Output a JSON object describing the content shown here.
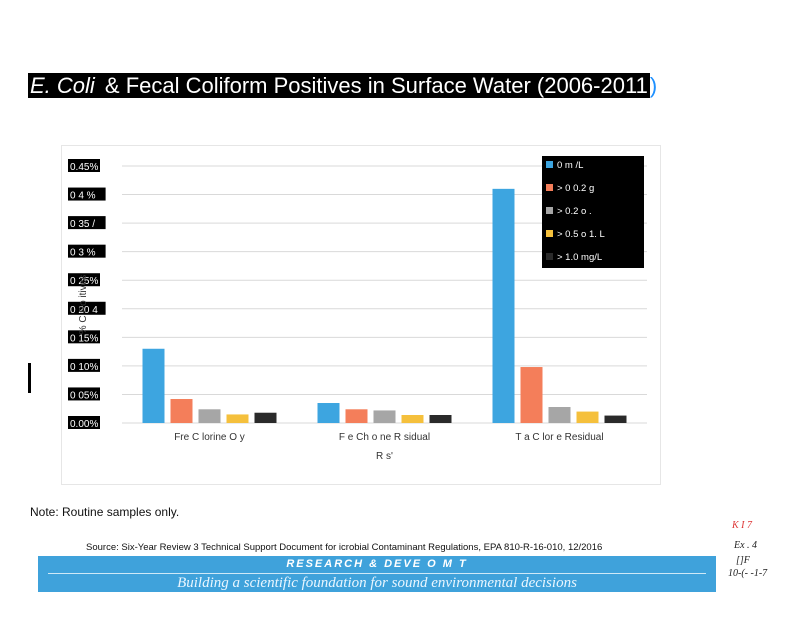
{
  "page": {
    "title_part1": "E. Coli",
    "title_part2": " & Fecal Coliform Positives in Surface Water (2006-2011",
    "title_paren": ")",
    "note": "Note: Routine samples only.",
    "source": "Source: Six-Year Review 3 Technical Support Document for    icrobial Contaminant Regulations, EPA 810-R-16-010, 12/2016",
    "banner_top": "RESEARCH &   DEVE   O  M    T",
    "banner_tagline": "Building a scientific foundation for sound environmental decisions",
    "handwritten": [
      "K I   7",
      "Ex .  4",
      "[]F",
      "10-(- -1-7"
    ]
  },
  "chart_data": {
    "type": "bar",
    "categories": [
      "Free Chlorine Only",
      "Free Chlorine Residual",
      "Total Chlorine Residual"
    ],
    "category_display": [
      "Fre  C lorine O  y",
      "F  e  Ch o  ne R  sidual",
      "T   a  C lor  e Residual"
    ],
    "xlabel": "R  s'",
    "ylabel": "%  C Po  itives",
    "ylim": [
      0,
      0.45
    ],
    "yticks": [
      "0.00%",
      "0.05%",
      "0.10%",
      "0.15%",
      "0.20%",
      "0.25%",
      "0.30%",
      "0.35%",
      "0.40%",
      "0.45%"
    ],
    "ytick_display": [
      "0.00%",
      "0 05%",
      "0 10%",
      "0 15%",
      "0 20 4",
      "0 25%",
      "0 3  %",
      "0 35 /",
      "0 4  %",
      "0.45%"
    ],
    "grid": true,
    "legend_position": "top-right",
    "legend_display": [
      "0 m  /L",
      "> 0    0.2   g",
      "> 0.2  o       .",
      "> 0.5  o 1.      L",
      "> 1.0 mg/L"
    ],
    "series": [
      {
        "name": "0 mg/L",
        "color": "#3da5e0",
        "values": [
          0.13,
          0.035,
          0.41
        ]
      },
      {
        "name": "> 0 - 0.2 mg/L",
        "color": "#f47e5a",
        "values": [
          0.042,
          0.024,
          0.098
        ]
      },
      {
        "name": "> 0.2 - 0.5 mg/L",
        "color": "#a6a6a6",
        "values": [
          0.024,
          0.022,
          0.028
        ]
      },
      {
        "name": "> 0.5 - 1.0 mg/L",
        "color": "#f5c03c",
        "values": [
          0.015,
          0.014,
          0.02
        ]
      },
      {
        "name": "> 1.0 mg/L",
        "color": "#2a2a2a",
        "values": [
          0.018,
          0.014,
          0.013
        ]
      }
    ]
  }
}
